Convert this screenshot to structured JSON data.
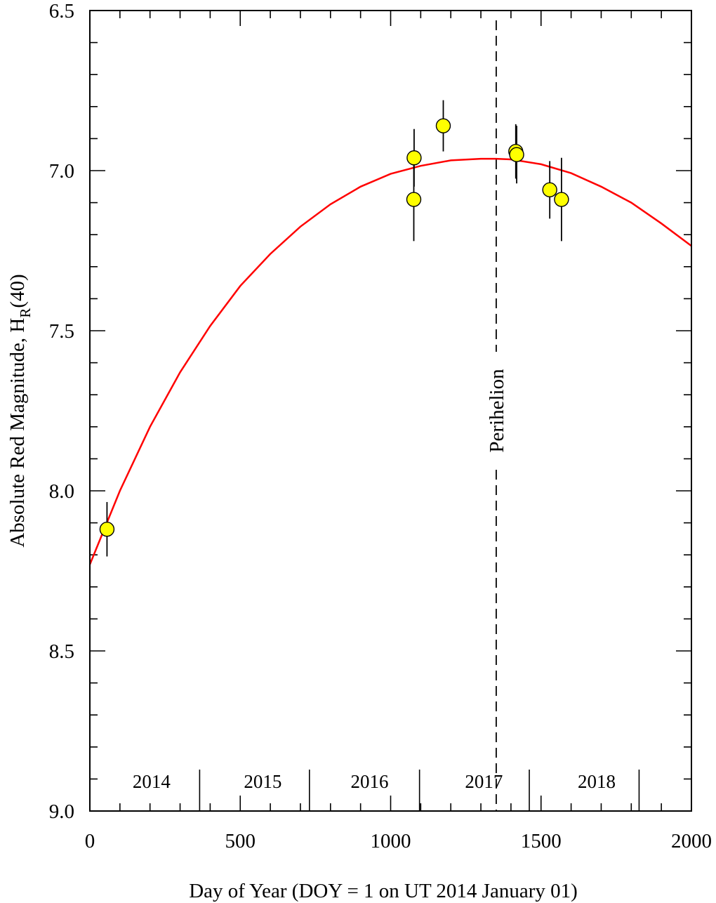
{
  "chart_data": {
    "type": "scatter",
    "xlabel": "Day of Year (DOY = 1 on UT 2014 January 01)",
    "ylabel_main": "Absolute Red Magnitude, H",
    "ylabel_sub": "R",
    "ylabel_tail": "(40)",
    "xlim": [
      0,
      2000
    ],
    "ylim": [
      6.5,
      9.0
    ],
    "y_inverted": true,
    "x_ticks": [
      0,
      500,
      1000,
      1500,
      2000
    ],
    "x_tick_labels": [
      "0",
      "500",
      "1000",
      "1500",
      "2000"
    ],
    "x_minor_step": 100,
    "y_ticks": [
      6.5,
      7.0,
      7.5,
      8.0,
      8.5,
      9.0
    ],
    "y_tick_labels": [
      "6.5",
      "7.0",
      "7.5",
      "8.0",
      "8.5",
      "9.0"
    ],
    "y_minor_step": 0.1,
    "grid": false,
    "points": [
      {
        "x": 57,
        "y": 8.12,
        "err": 0.085
      },
      {
        "x": 1077,
        "y": 7.09,
        "err": 0.13
      },
      {
        "x": 1078,
        "y": 6.96,
        "err": 0.09
      },
      {
        "x": 1175,
        "y": 6.86,
        "err": 0.08
      },
      {
        "x": 1416,
        "y": 6.94,
        "err": 0.085
      },
      {
        "x": 1419,
        "y": 6.95,
        "err": 0.09
      },
      {
        "x": 1529,
        "y": 7.06,
        "err": 0.09
      },
      {
        "x": 1568,
        "y": 7.09,
        "err": 0.13
      }
    ],
    "point_color": "#ffff00",
    "fit_curve": {
      "color": "#ff0000",
      "x": [
        0,
        100,
        200,
        300,
        400,
        500,
        600,
        700,
        800,
        900,
        1000,
        1100,
        1200,
        1300,
        1350,
        1400,
        1500,
        1600,
        1700,
        1800,
        1900,
        2000
      ],
      "y": [
        8.23,
        8.0,
        7.8,
        7.63,
        7.485,
        7.36,
        7.26,
        7.175,
        7.105,
        7.05,
        7.01,
        6.985,
        6.968,
        6.963,
        6.963,
        6.965,
        6.98,
        7.008,
        7.05,
        7.1,
        7.165,
        7.235
      ]
    },
    "perihelion": {
      "x": 1351,
      "label": "Perihelion"
    },
    "year_boundaries": [
      365,
      730,
      1096,
      1461,
      1826
    ],
    "years": [
      {
        "label": "2014",
        "x": 205
      },
      {
        "label": "2015",
        "x": 575
      },
      {
        "label": "2016",
        "x": 930
      },
      {
        "label": "2017",
        "x": 1310
      },
      {
        "label": "2018",
        "x": 1685
      }
    ]
  }
}
